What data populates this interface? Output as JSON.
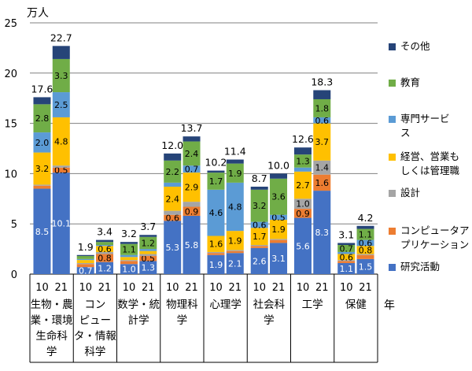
{
  "unit_label": "万人",
  "year_axis_label": "年",
  "chart_data": {
    "type": "bar",
    "stacked": true,
    "ylim": [
      0,
      25
    ],
    "yticks": [
      "0",
      "5",
      "10",
      "15",
      "20",
      "25"
    ],
    "grid": true,
    "legend_position": "right",
    "groups": [
      {
        "label": "生物・農\n業・環境\n生命科\n学",
        "years": [
          "10",
          "21"
        ],
        "totals": [
          "17.6",
          "22.7"
        ]
      },
      {
        "label": "コン\nピュー\nタ・情報\n科学",
        "years": [
          "10",
          "21"
        ],
        "totals": [
          "1.9",
          "3.4"
        ]
      },
      {
        "label": "数学・統\n計学",
        "years": [
          "10",
          "21"
        ],
        "totals": [
          "3.2",
          "3.7"
        ]
      },
      {
        "label": "物理科\n学",
        "years": [
          "10",
          "21"
        ],
        "totals": [
          "12.0",
          "13.7"
        ]
      },
      {
        "label": "心理学",
        "years": [
          "10",
          "21"
        ],
        "totals": [
          "10.2",
          "11.4"
        ]
      },
      {
        "label": "社会科\n学",
        "years": [
          "10",
          "21"
        ],
        "totals": [
          "8.7",
          "10.0"
        ]
      },
      {
        "label": "工学",
        "years": [
          "10",
          "21"
        ],
        "totals": [
          "12.6",
          "18.3"
        ]
      },
      {
        "label": "保健",
        "years": [
          "10",
          "21"
        ],
        "totals": [
          "3.1",
          "4.2"
        ]
      }
    ],
    "series": [
      {
        "name": "研究活動",
        "color": "#4472C4",
        "values": [
          8.5,
          10.1,
          0.7,
          1.2,
          1.0,
          1.3,
          5.3,
          5.8,
          1.9,
          2.1,
          2.6,
          3.1,
          5.6,
          8.3,
          1.1,
          1.5
        ],
        "labels": [
          "8.5",
          "10.1",
          "0.7",
          "1.2",
          "1.0",
          "1.3",
          "5.3",
          "5.8",
          "1.9",
          "2.1",
          "2.6",
          "3.1",
          "5.6",
          "8.3",
          "1.1",
          "1.5"
        ]
      },
      {
        "name": "コンピュータア\nプリケーション",
        "color": "#ED7D31",
        "values": [
          0.3,
          0.5,
          0.3,
          0.8,
          0.3,
          0.5,
          0.6,
          0.9,
          0.2,
          0.2,
          0.2,
          0.3,
          0.9,
          1.6,
          0.2,
          0.4
        ],
        "labels": [
          "",
          "0.5",
          "",
          "0.8",
          "",
          "0.5",
          "0.6",
          "0.9",
          "",
          "",
          "",
          "",
          "0.9",
          "1.6",
          "",
          ""
        ]
      },
      {
        "name": "設計",
        "color": "#A5A5A5",
        "values": [
          0.1,
          0.2,
          0.1,
          0.2,
          0.1,
          0.2,
          0.4,
          0.5,
          0.1,
          0.1,
          0.1,
          0.1,
          1.0,
          1.4,
          0.1,
          0.1
        ],
        "labels": [
          "",
          "",
          "",
          "",
          "",
          "",
          "",
          "",
          "",
          "",
          "",
          "",
          "1.0",
          "1.4",
          "",
          ""
        ]
      },
      {
        "name": "経営、営業も\nしくは管理職",
        "color": "#FFC000",
        "values": [
          3.2,
          4.8,
          0.3,
          0.6,
          0.3,
          0.3,
          2.4,
          2.9,
          1.6,
          1.9,
          1.7,
          1.9,
          2.7,
          3.7,
          0.6,
          0.8
        ],
        "labels": [
          "3.2",
          "4.8",
          "",
          "0.6",
          "",
          "",
          "2.4",
          "2.9",
          "1.6",
          "1.9",
          "1.7",
          "1.9",
          "2.7",
          "3.7",
          "0.6",
          "0.8"
        ]
      },
      {
        "name": "専門サービ\nス",
        "color": "#5B9BD5",
        "values": [
          2.0,
          2.5,
          0.1,
          0.1,
          0.2,
          0.2,
          0.4,
          0.7,
          4.6,
          4.8,
          0.6,
          0.5,
          0.4,
          0.6,
          0.2,
          0.6
        ],
        "labels": [
          "2.0",
          "2.5",
          "",
          "",
          "",
          "",
          "",
          "0.7",
          "4.6",
          "4.8",
          "0.6",
          "0.5",
          "",
          "0.6",
          "",
          "0.6"
        ]
      },
      {
        "name": "教育",
        "color": "#70AD47",
        "values": [
          2.8,
          3.3,
          0.3,
          0.3,
          1.1,
          1.2,
          2.2,
          2.4,
          1.7,
          1.9,
          3.2,
          3.6,
          1.3,
          1.8,
          0.7,
          1.1
        ],
        "labels": [
          "2.8",
          "3.3",
          "",
          "",
          "1.1",
          "1.2",
          "2.2",
          "2.4",
          "1.7",
          "1.9",
          "3.2",
          "3.6",
          "1.3",
          "1.8",
          "0.7",
          "1.1"
        ]
      },
      {
        "name": "その他",
        "color": "#264478",
        "values": [
          0.7,
          1.3,
          0.1,
          0.2,
          0.2,
          0.2,
          0.7,
          0.5,
          0.2,
          0.4,
          0.3,
          0.5,
          0.7,
          0.9,
          0.2,
          0.3
        ],
        "labels": [
          "",
          "",
          "",
          "",
          "",
          "",
          "",
          "",
          "",
          "",
          "",
          "",
          "",
          "",
          "",
          ""
        ]
      }
    ],
    "legend_order": [
      "その他",
      "教育",
      "専門サービ\nス",
      "経営、営業も\nしくは管理職",
      "設計",
      "コンピュータア\nプリケーション",
      "研究活動"
    ]
  }
}
